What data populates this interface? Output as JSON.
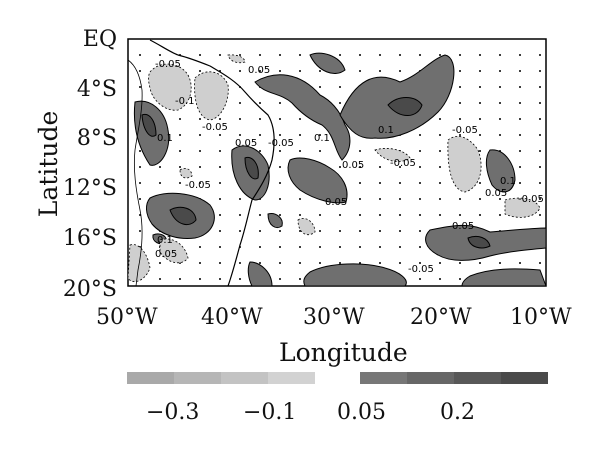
{
  "map": {
    "title": "",
    "x_axis": {
      "title": "Longitude",
      "ticks": [
        "50°W",
        "40°W",
        "30°W",
        "20°W",
        "10°W"
      ]
    },
    "y_axis": {
      "title": "Latitude",
      "ticks": [
        "EQ",
        "4°S",
        "8°S",
        "12°S",
        "16°S",
        "20°S"
      ]
    },
    "contour_labels": [
      "-0.05",
      "0.05",
      "0.1",
      "-0.1"
    ],
    "colorbar": {
      "tick_labels": [
        "−0.3",
        "−0.1",
        "0.05",
        "0.2"
      ],
      "negative_colors": [
        "#a9a9a9",
        "#b6b6b6",
        "#c3c3c3",
        "#d2d2d2"
      ],
      "positive_colors": [
        "#777777",
        "#676767",
        "#585858",
        "#4a4a4a"
      ]
    },
    "colors": {
      "positive_fill": "#6f6f6f",
      "positive_dark": "#4a4a4a",
      "negative_fill": "#cfcfcf",
      "negative_dark": "#b9b9b9",
      "land_line": "#000000"
    }
  }
}
